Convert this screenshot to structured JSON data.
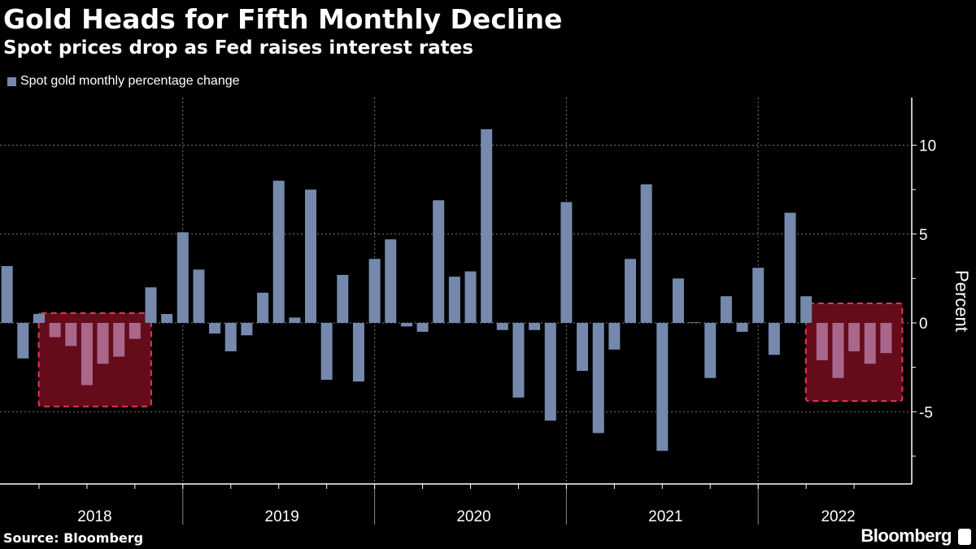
{
  "header": {
    "title": "Gold Heads for Fifth Monthly Decline",
    "subtitle": "Spot prices drop as Fed raises interest rates"
  },
  "footer": {
    "source": "Source: Bloomberg",
    "brand": "Bloomberg"
  },
  "colors": {
    "bar": "#7589ad",
    "bar_highlighted": "#a9678c",
    "highlight_fill": "#650c1b",
    "highlight_border": "#e8335c",
    "grid": "#777777",
    "background": "#000000"
  },
  "chart_data": {
    "type": "bar",
    "title": "Gold Heads for Fifth Monthly Decline",
    "subtitle": "Spot prices drop as Fed raises interest rates",
    "ylabel": "Percent",
    "xlabel": "",
    "ylim": [
      -9,
      12.7
    ],
    "yticks": [
      -5,
      0,
      5,
      10
    ],
    "y_axis_side": "right",
    "grid": true,
    "legend_position": "top-left",
    "x_tick_labels": [
      "2018",
      "2019",
      "2020",
      "2021",
      "2022"
    ],
    "series": [
      {
        "name": "Spot gold monthly percentage change",
        "categories": [
          "2018-01",
          "2018-02",
          "2018-03",
          "2018-04",
          "2018-05",
          "2018-06",
          "2018-07",
          "2018-08",
          "2018-09",
          "2018-10",
          "2018-11",
          "2018-12",
          "2019-01",
          "2019-02",
          "2019-03",
          "2019-04",
          "2019-05",
          "2019-06",
          "2019-07",
          "2019-08",
          "2019-09",
          "2019-10",
          "2019-11",
          "2019-12",
          "2020-01",
          "2020-02",
          "2020-03",
          "2020-04",
          "2020-05",
          "2020-06",
          "2020-07",
          "2020-08",
          "2020-09",
          "2020-10",
          "2020-11",
          "2020-12",
          "2021-01",
          "2021-02",
          "2021-03",
          "2021-04",
          "2021-05",
          "2021-06",
          "2021-07",
          "2021-08",
          "2021-09",
          "2021-10",
          "2021-11",
          "2021-12",
          "2022-01",
          "2022-02",
          "2022-03",
          "2022-04",
          "2022-05",
          "2022-06",
          "2022-07",
          "2022-08"
        ],
        "values": [
          3.2,
          -2.0,
          0.5,
          -0.8,
          -1.3,
          -3.5,
          -2.3,
          -1.9,
          -0.9,
          2.0,
          0.5,
          5.1,
          3.0,
          -0.6,
          -1.6,
          -0.7,
          1.7,
          8.0,
          0.3,
          7.5,
          -3.2,
          2.7,
          -3.3,
          3.6,
          4.7,
          -0.2,
          -0.5,
          6.9,
          2.6,
          2.9,
          10.9,
          -0.4,
          -4.2,
          -0.4,
          -5.5,
          6.8,
          -2.7,
          -6.2,
          -1.5,
          3.6,
          7.8,
          -7.2,
          2.5,
          0.0,
          -3.1,
          1.5,
          -0.5,
          3.1,
          -1.8,
          6.2,
          1.5,
          -2.1,
          -3.1,
          -1.6,
          -2.3,
          -1.7
        ]
      }
    ],
    "highlights": [
      {
        "from": "2018-04",
        "to": "2018-09",
        "top": 0.55,
        "bottom": -4.7
      },
      {
        "from": "2022-04",
        "to": "2022-08",
        "top": 1.1,
        "bottom": -4.4
      }
    ]
  }
}
